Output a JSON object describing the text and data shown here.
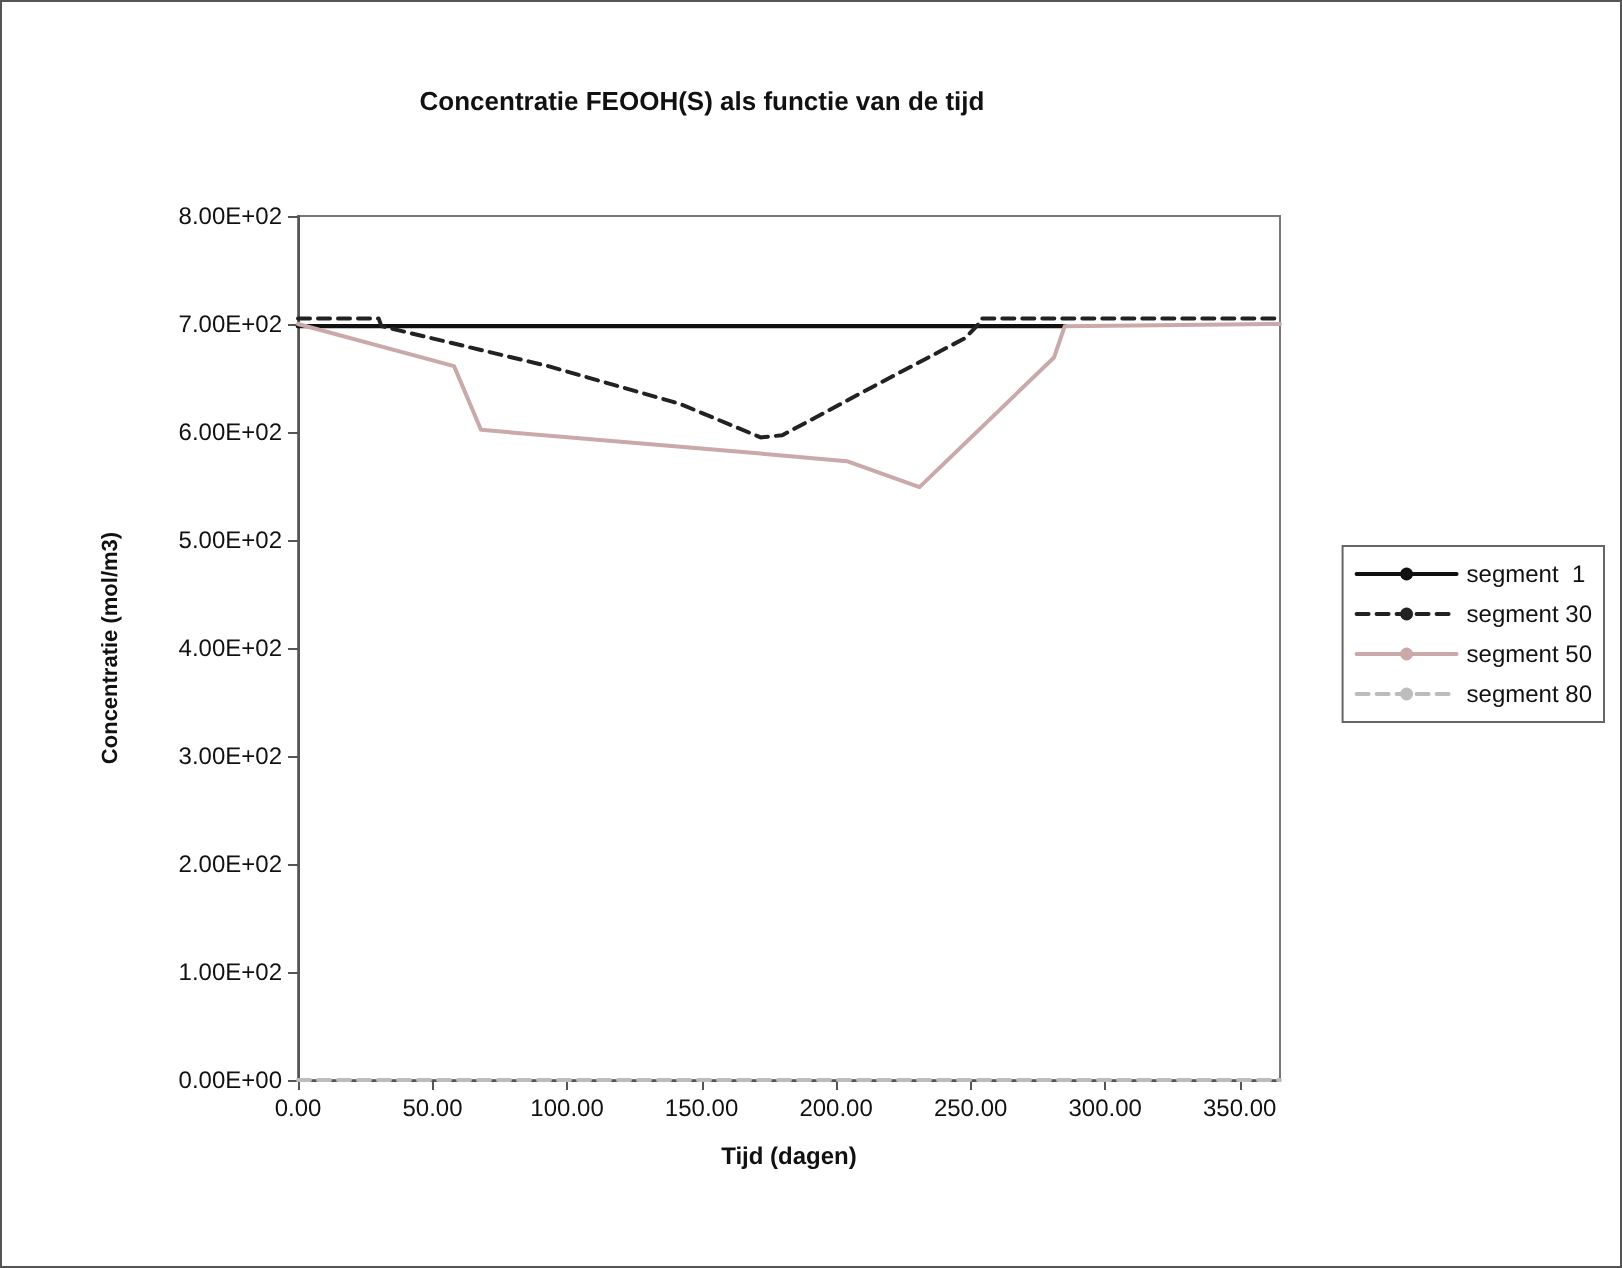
{
  "chart_data": {
    "type": "line",
    "title": "Concentratie FEOOH(S) als functie van de tijd",
    "xlabel": "Tijd (dagen)",
    "ylabel": "Concentratie (mol/m3)",
    "xlim": [
      0,
      365
    ],
    "xticks": [
      {
        "value": 0,
        "label": "0.00"
      },
      {
        "value": 50,
        "label": "50.00"
      },
      {
        "value": 100,
        "label": "100.00"
      },
      {
        "value": 150,
        "label": "150.00"
      },
      {
        "value": 200,
        "label": "200.00"
      },
      {
        "value": 250,
        "label": "250.00"
      },
      {
        "value": 300,
        "label": "300.00"
      },
      {
        "value": 350,
        "label": "350.00"
      }
    ],
    "ylim": [
      0,
      800
    ],
    "yticks": [
      {
        "value": 0,
        "label": "0.00E+00"
      },
      {
        "value": 100,
        "label": "1.00E+02"
      },
      {
        "value": 200,
        "label": "2.00E+02"
      },
      {
        "value": 300,
        "label": "3.00E+02"
      },
      {
        "value": 400,
        "label": "4.00E+02"
      },
      {
        "value": 500,
        "label": "5.00E+02"
      },
      {
        "value": 600,
        "label": "6.00E+02"
      },
      {
        "value": 700,
        "label": "7.00E+02"
      },
      {
        "value": 800,
        "label": "8.00E+02"
      }
    ],
    "grid": false,
    "legend": "right",
    "marker": "none",
    "series": [
      {
        "name": "segment  1",
        "color": "#111111",
        "line_style": "solid",
        "x": [
          0,
          285
        ],
        "values": [
          698,
          698
        ]
      },
      {
        "name": "segment 30",
        "color": "#222222",
        "line_style": "dashed",
        "x": [
          0,
          30,
          31,
          93,
          142,
          172,
          180,
          216,
          248,
          253,
          254,
          365
        ],
        "values": [
          705,
          705,
          698,
          661,
          626,
          595,
          597,
          645,
          687,
          700,
          705,
          705
        ]
      },
      {
        "name": "segment 50",
        "color": "#c9a9a9",
        "line_style": "solid",
        "x": [
          0,
          58,
          68,
          172,
          204,
          231,
          281,
          285,
          365
        ],
        "values": [
          700,
          661,
          602,
          580,
          573,
          549,
          669,
          698,
          700
        ]
      },
      {
        "name": "segment 80",
        "color": "#bdbdbd",
        "line_style": "dashed",
        "x": [
          0,
          365
        ],
        "values": [
          0,
          0
        ]
      }
    ]
  }
}
